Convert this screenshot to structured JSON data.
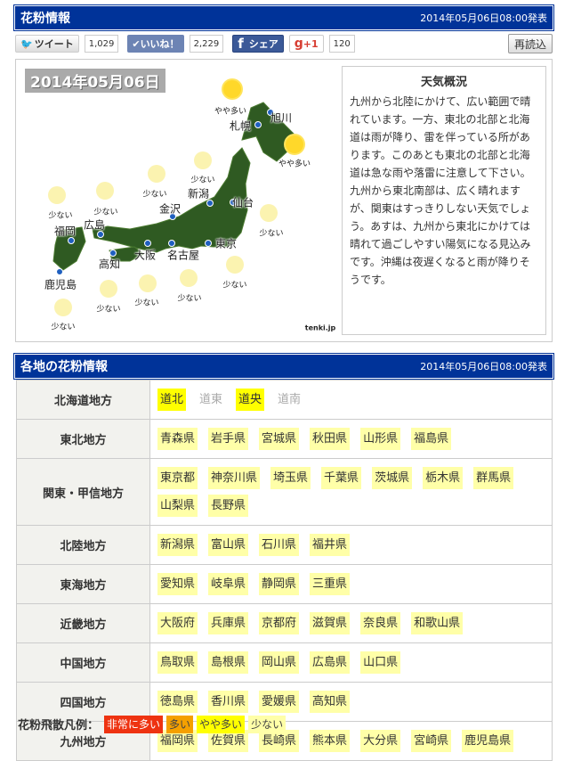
{
  "header": {
    "title": "花粉情報",
    "issued": "2014年05月06日08:00発表"
  },
  "social": {
    "tweet": "ツイート",
    "tweet_count": "1,029",
    "like": "いいね！",
    "like_count": "2,229",
    "share": "シェア",
    "gplus": "+1",
    "gplus_count": "120",
    "reload": "再読込"
  },
  "map": {
    "date": "2014年05月06日",
    "credit": "tenki.jp",
    "cities": [
      "旭川",
      "札幌",
      "新潟",
      "仙台",
      "金沢",
      "広島",
      "福岡",
      "大阪",
      "名古屋",
      "東京",
      "高知",
      "鹿児島"
    ],
    "levels": [
      "やや多い",
      "やや多い",
      "少ない",
      "少ない",
      "少ない",
      "少ない",
      "少ない",
      "少ない",
      "少ない",
      "少ない",
      "少ない",
      "少ない"
    ]
  },
  "weather": {
    "title": "天気概況",
    "text": "九州から北陸にかけて、広い範囲で晴れています。一方、東北の北部と北海道は雨が降り、雷を伴っている所があります。このあとも東北の北部と北海道は急な雨や落雷に注意して下さい。九州から東北南部は、広く晴れますが、関東はすっきりしない天気でしょう。あすは、九州から東北にかけては晴れて過ごしやすい陽気になる見込みです。沖縄は夜遅くなると雨が降りそうです。"
  },
  "regions_header": {
    "title": "各地の花粉情報",
    "issued": "2014年05月06日08:00発表"
  },
  "regions": [
    {
      "name": "北海道地方",
      "prefs": [
        {
          "n": "道北",
          "l": "やや多い"
        },
        {
          "n": "道東",
          "l": "none"
        },
        {
          "n": "道央",
          "l": "やや多い"
        },
        {
          "n": "道南",
          "l": "none"
        }
      ]
    },
    {
      "name": "東北地方",
      "prefs": [
        {
          "n": "青森県",
          "l": "少ない"
        },
        {
          "n": "岩手県",
          "l": "少ない"
        },
        {
          "n": "宮城県",
          "l": "少ない"
        },
        {
          "n": "秋田県",
          "l": "少ない"
        },
        {
          "n": "山形県",
          "l": "少ない"
        },
        {
          "n": "福島県",
          "l": "少ない"
        }
      ]
    },
    {
      "name": "関東・甲信地方",
      "prefs": [
        {
          "n": "東京都",
          "l": "少ない"
        },
        {
          "n": "神奈川県",
          "l": "少ない"
        },
        {
          "n": "埼玉県",
          "l": "少ない"
        },
        {
          "n": "千葉県",
          "l": "少ない"
        },
        {
          "n": "茨城県",
          "l": "少ない"
        },
        {
          "n": "栃木県",
          "l": "少ない"
        },
        {
          "n": "群馬県",
          "l": "少ない"
        },
        {
          "n": "山梨県",
          "l": "少ない"
        },
        {
          "n": "長野県",
          "l": "少ない"
        }
      ]
    },
    {
      "name": "北陸地方",
      "prefs": [
        {
          "n": "新潟県",
          "l": "少ない"
        },
        {
          "n": "富山県",
          "l": "少ない"
        },
        {
          "n": "石川県",
          "l": "少ない"
        },
        {
          "n": "福井県",
          "l": "少ない"
        }
      ]
    },
    {
      "name": "東海地方",
      "prefs": [
        {
          "n": "愛知県",
          "l": "少ない"
        },
        {
          "n": "岐阜県",
          "l": "少ない"
        },
        {
          "n": "静岡県",
          "l": "少ない"
        },
        {
          "n": "三重県",
          "l": "少ない"
        }
      ]
    },
    {
      "name": "近畿地方",
      "prefs": [
        {
          "n": "大阪府",
          "l": "少ない"
        },
        {
          "n": "兵庫県",
          "l": "少ない"
        },
        {
          "n": "京都府",
          "l": "少ない"
        },
        {
          "n": "滋賀県",
          "l": "少ない"
        },
        {
          "n": "奈良県",
          "l": "少ない"
        },
        {
          "n": "和歌山県",
          "l": "少ない"
        }
      ]
    },
    {
      "name": "中国地方",
      "prefs": [
        {
          "n": "鳥取県",
          "l": "少ない"
        },
        {
          "n": "島根県",
          "l": "少ない"
        },
        {
          "n": "岡山県",
          "l": "少ない"
        },
        {
          "n": "広島県",
          "l": "少ない"
        },
        {
          "n": "山口県",
          "l": "少ない"
        }
      ]
    },
    {
      "name": "四国地方",
      "prefs": [
        {
          "n": "徳島県",
          "l": "少ない"
        },
        {
          "n": "香川県",
          "l": "少ない"
        },
        {
          "n": "愛媛県",
          "l": "少ない"
        },
        {
          "n": "高知県",
          "l": "少ない"
        }
      ]
    },
    {
      "name": "九州地方",
      "prefs": [
        {
          "n": "福岡県",
          "l": "少ない"
        },
        {
          "n": "佐賀県",
          "l": "少ない"
        },
        {
          "n": "長崎県",
          "l": "少ない"
        },
        {
          "n": "熊本県",
          "l": "少ない"
        },
        {
          "n": "大分県",
          "l": "少ない"
        },
        {
          "n": "宮崎県",
          "l": "少ない"
        },
        {
          "n": "鹿児島県",
          "l": "少ない"
        }
      ]
    }
  ],
  "legend": {
    "title": "花粉飛散凡例：",
    "items": [
      {
        "label": "非常に多い",
        "color": "#ee3311",
        "text": "#ffffff"
      },
      {
        "label": "多い",
        "color": "#f5a000",
        "text": "#444444"
      },
      {
        "label": "やや多い",
        "color": "#ffff00",
        "text": "#444444"
      },
      {
        "label": "少ない",
        "color": "#ffffa8",
        "text": "#444444"
      }
    ]
  },
  "colors": {
    "header": "#003399",
    "accent_high": "#ffff00",
    "low": "#ffffa8"
  }
}
